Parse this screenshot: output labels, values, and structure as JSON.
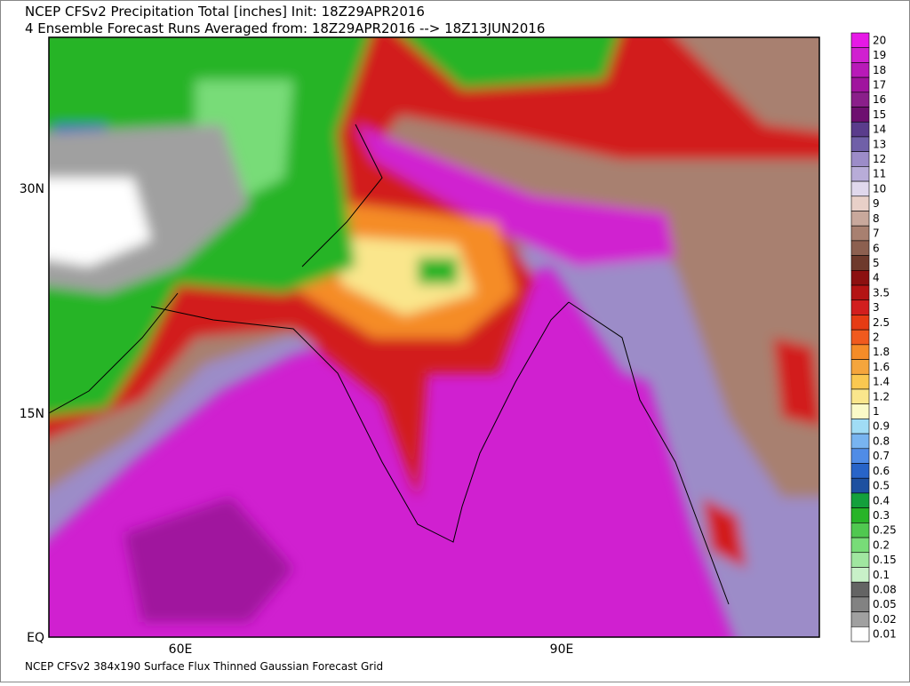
{
  "header": {
    "line1": "NCEP CFSv2 Precipitation Total [inches] Init: 18Z29APR2016",
    "line2": "4 Ensemble Forecast Runs Averaged from: 18Z29APR2016 --> 18Z13JUN2016"
  },
  "map": {
    "lat_labels": [
      "30N",
      "15N",
      "EQ"
    ],
    "lon_labels": [
      "60E",
      "90E"
    ]
  },
  "colorbar": {
    "levels": [
      {
        "label": "20",
        "color": "#e619e6"
      },
      {
        "label": "19",
        "color": "#d020d0"
      },
      {
        "label": "18",
        "color": "#b81ab8"
      },
      {
        "label": "17",
        "color": "#a0149e"
      },
      {
        "label": "16",
        "color": "#8a1f8a"
      },
      {
        "label": "15",
        "color": "#6e1070"
      },
      {
        "label": "14",
        "color": "#5a3c8c"
      },
      {
        "label": "13",
        "color": "#7060a8"
      },
      {
        "label": "12",
        "color": "#9c8cc8"
      },
      {
        "label": "11",
        "color": "#b8acd8"
      },
      {
        "label": "10",
        "color": "#e0d8ec"
      },
      {
        "label": "9",
        "color": "#e8d0c8"
      },
      {
        "label": "8",
        "color": "#c8a89c"
      },
      {
        "label": "7",
        "color": "#a88070"
      },
      {
        "label": "6",
        "color": "#8c6050"
      },
      {
        "label": "5",
        "color": "#6e3a2c"
      },
      {
        "label": "4",
        "color": "#8c1010"
      },
      {
        "label": "3.5",
        "color": "#b41414"
      },
      {
        "label": "3",
        "color": "#d21e1e"
      },
      {
        "label": "2.5",
        "color": "#e63c14"
      },
      {
        "label": "2",
        "color": "#f05a1e"
      },
      {
        "label": "1.8",
        "color": "#f58c28"
      },
      {
        "label": "1.6",
        "color": "#f5a53c"
      },
      {
        "label": "1.4",
        "color": "#fac850"
      },
      {
        "label": "1.2",
        "color": "#fae68c"
      },
      {
        "label": "1",
        "color": "#fafac8"
      },
      {
        "label": "0.9",
        "color": "#a0dcf5"
      },
      {
        "label": "0.8",
        "color": "#78b4f0"
      },
      {
        "label": "0.7",
        "color": "#508ce6"
      },
      {
        "label": "0.6",
        "color": "#2864c8"
      },
      {
        "label": "0.5",
        "color": "#1e50a0"
      },
      {
        "label": "0.4",
        "color": "#14a03c"
      },
      {
        "label": "0.3",
        "color": "#28b428"
      },
      {
        "label": "0.25",
        "color": "#50c850"
      },
      {
        "label": "0.2",
        "color": "#78dc78"
      },
      {
        "label": "0.15",
        "color": "#a0e6a0"
      },
      {
        "label": "0.1",
        "color": "#c8f0c8"
      },
      {
        "label": "0.08",
        "color": "#646464"
      },
      {
        "label": "0.05",
        "color": "#828282"
      },
      {
        "label": "0.02",
        "color": "#a0a0a0"
      },
      {
        "label": "0.01",
        "color": "#ffffff"
      }
    ]
  },
  "footer": "NCEP CFSv2 384x190 Surface Flux Thinned Gaussian Forecast Grid"
}
